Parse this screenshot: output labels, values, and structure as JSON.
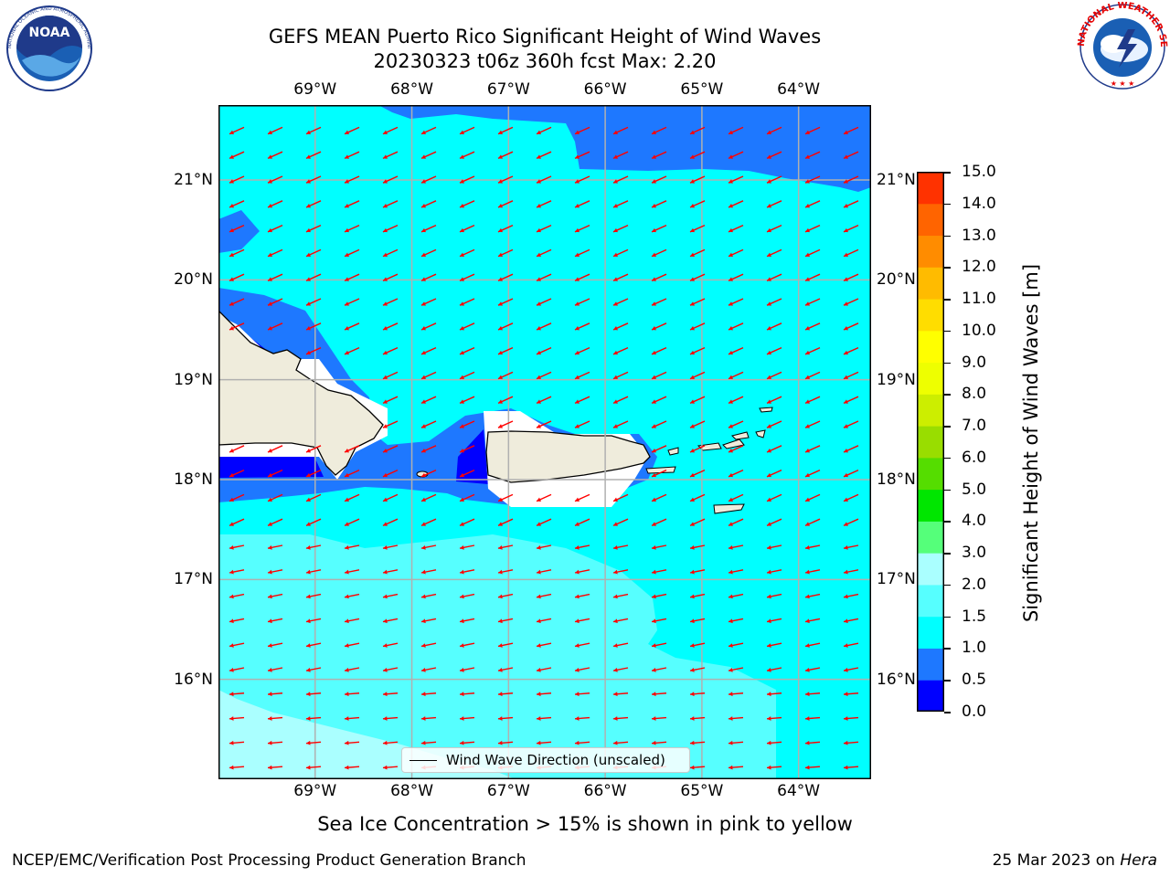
{
  "title": {
    "line1": "GEFS MEAN Puerto Rico Significant Height of Wind Waves",
    "line2": "20230323 t06z 360h fcst   Max: 2.20"
  },
  "logos": {
    "left": {
      "name": "noaa-logo",
      "text": "NOAA",
      "ring_text": "NATIONAL OCEANIC AND ATMOSPHERIC ADMINISTRATION · U.S. DEPARTMENT OF COMMERCE"
    },
    "right": {
      "name": "nws-logo",
      "ring_text": "NATIONAL WEATHER SERVICE"
    }
  },
  "map": {
    "lon_min": -70.0,
    "lon_max": -63.25,
    "lat_min": 15.0,
    "lat_max": 21.75,
    "lon_labels": [
      "69°W",
      "68°W",
      "67°W",
      "66°W",
      "65°W",
      "64°W"
    ],
    "lat_labels": [
      "21°N",
      "20°N",
      "19°N",
      "18°N",
      "17°N",
      "16°N"
    ],
    "gridline_color": "#b0b0b0",
    "land_color": "#efecdc",
    "arrow_color": "#ff0000",
    "legend_label": "Wind Wave Direction (unscaled)"
  },
  "colorbar": {
    "label": "Significant Height of Wind Waves [m]",
    "ticks": [
      "0.0",
      "0.5",
      "1.0",
      "1.5",
      "2.0",
      "3.0",
      "4.0",
      "5.0",
      "6.0",
      "7.0",
      "8.0",
      "9.0",
      "10.0",
      "11.0",
      "12.0",
      "13.0",
      "14.0",
      "15.0"
    ],
    "colors": [
      "#0000ff",
      "#1e78ff",
      "#00ffff",
      "#56ffff",
      "#aaffff",
      "#55ff7a",
      "#00e600",
      "#55dd00",
      "#99dd00",
      "#ccee00",
      "#eeff00",
      "#ffff00",
      "#ffdd00",
      "#ffbb00",
      "#ff8c00",
      "#ff6400",
      "#ff3200",
      "#ff0000"
    ]
  },
  "footnote": "Sea Ice Concentration > 15% is shown in pink to yellow",
  "credit": "NCEP/EMC/Verification Post Processing Product Generation Branch",
  "date_stamp": {
    "date": "25 Mar 2023 on",
    "host": "Hera"
  }
}
